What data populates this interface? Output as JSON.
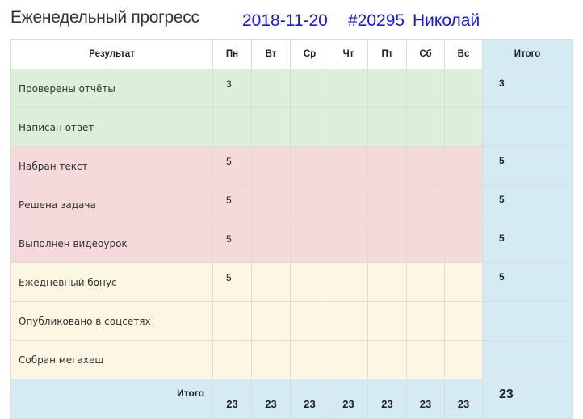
{
  "header": {
    "title": "Еженедельный прогресс",
    "date": "2018-11-20",
    "user_id": "#20295",
    "user_name": "Николай"
  },
  "table": {
    "columns": [
      "Результат",
      "Пн",
      "Вт",
      "Ср",
      "Чт",
      "Пт",
      "Сб",
      "Вс",
      "Итого"
    ],
    "rows": [
      {
        "label": "Проверены отчёты",
        "group": "g",
        "values": [
          "3",
          "",
          "",
          "",
          "",
          "",
          ""
        ],
        "total": "3"
      },
      {
        "label": "Написан ответ",
        "group": "g",
        "values": [
          "",
          "",
          "",
          "",
          "",
          "",
          ""
        ],
        "total": ""
      },
      {
        "label": "Набран текст",
        "group": "p",
        "values": [
          "5",
          "",
          "",
          "",
          "",
          "",
          ""
        ],
        "total": "5"
      },
      {
        "label": "Решена задача",
        "group": "p",
        "values": [
          "5",
          "",
          "",
          "",
          "",
          "",
          ""
        ],
        "total": "5"
      },
      {
        "label": "Выполнен видеоурок",
        "group": "p",
        "values": [
          "5",
          "",
          "",
          "",
          "",
          "",
          ""
        ],
        "total": "5"
      },
      {
        "label": "Ежедневный бонус",
        "group": "y",
        "values": [
          "5",
          "",
          "",
          "",
          "",
          "",
          ""
        ],
        "total": "5"
      },
      {
        "label": "Опубликовано в соцсетях",
        "group": "y",
        "values": [
          "",
          "",
          "",
          "",
          "",
          "",
          ""
        ],
        "total": ""
      },
      {
        "label": "Собран мегахеш",
        "group": "y",
        "values": [
          "",
          "",
          "",
          "",
          "",
          "",
          ""
        ],
        "total": ""
      }
    ],
    "footer": {
      "label": "Итого",
      "values": [
        "23",
        "23",
        "23",
        "23",
        "23",
        "23",
        "23"
      ],
      "total": "23"
    }
  },
  "colors": {
    "green": "#dcefd9",
    "pink": "#f5dadb",
    "yellow": "#fdf6e3",
    "total": "#d4ebf4",
    "link": "#1515ee"
  }
}
